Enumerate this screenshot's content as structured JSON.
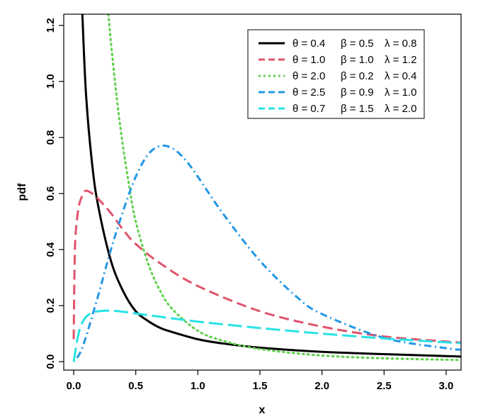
{
  "chart_data": {
    "type": "line",
    "title": "",
    "xlabel": "x",
    "ylabel": "pdf",
    "xlim": [
      -0.08,
      3.12
    ],
    "ylim": [
      -0.03,
      1.24
    ],
    "x_ticks": [
      "0.0",
      "0.5",
      "1.0",
      "1.5",
      "2.0",
      "2.5",
      "3.0"
    ],
    "y_ticks": [
      "0.0",
      "0.2",
      "0.4",
      "0.6",
      "0.8",
      "1.0",
      "1.2"
    ],
    "grid": false,
    "legend_position": "top-right",
    "series": [
      {
        "name": "θ = 0.4  β = 0.5  λ = 0.8",
        "color": "#000000",
        "dash": "solid",
        "x": [
          0.07,
          0.1,
          0.15,
          0.2,
          0.3,
          0.4,
          0.5,
          0.6,
          0.7,
          0.8,
          1.0,
          1.2,
          1.5,
          2.0,
          2.5,
          3.0,
          3.12
        ],
        "y": [
          1.24,
          0.95,
          0.7,
          0.55,
          0.36,
          0.25,
          0.18,
          0.145,
          0.12,
          0.105,
          0.08,
          0.065,
          0.05,
          0.035,
          0.027,
          0.02,
          0.018
        ]
      },
      {
        "name": "θ = 1.0  β = 1.0  λ = 1.2",
        "color": "#DF536B",
        "dash": "dashed",
        "x": [
          0.0,
          0.01,
          0.03,
          0.05,
          0.08,
          0.1,
          0.15,
          0.2,
          0.3,
          0.4,
          0.5,
          0.7,
          1.0,
          1.5,
          2.0,
          2.5,
          3.0,
          3.12
        ],
        "y": [
          0.08,
          0.4,
          0.52,
          0.57,
          0.6,
          0.61,
          0.6,
          0.58,
          0.53,
          0.47,
          0.42,
          0.35,
          0.27,
          0.18,
          0.125,
          0.09,
          0.072,
          0.068
        ]
      },
      {
        "name": "θ = 2.0  β = 0.2  λ = 0.4",
        "color": "#61D04F",
        "dash": "dotted",
        "x": [
          0.28,
          0.3,
          0.35,
          0.4,
          0.45,
          0.5,
          0.6,
          0.7,
          0.8,
          1.0,
          1.2,
          1.5,
          2.0,
          2.5,
          3.0,
          3.12
        ],
        "y": [
          1.24,
          1.14,
          0.93,
          0.76,
          0.62,
          0.5,
          0.35,
          0.25,
          0.185,
          0.11,
          0.075,
          0.045,
          0.022,
          0.012,
          0.007,
          0.006
        ]
      },
      {
        "name": "θ = 2.5  β = 0.9  λ = 1.0",
        "color": "#2297E6",
        "dash": "dotdash",
        "x": [
          0.0,
          0.05,
          0.1,
          0.2,
          0.3,
          0.4,
          0.5,
          0.6,
          0.7,
          0.8,
          0.9,
          1.0,
          1.2,
          1.5,
          1.8,
          2.0,
          2.5,
          3.0,
          3.12
        ],
        "y": [
          0.0,
          0.03,
          0.09,
          0.24,
          0.4,
          0.54,
          0.66,
          0.74,
          0.77,
          0.76,
          0.72,
          0.66,
          0.53,
          0.36,
          0.23,
          0.17,
          0.085,
          0.048,
          0.043
        ]
      },
      {
        "name": "θ = 0.7  β = 1.5  λ = 2.0",
        "color": "#28E2E5",
        "dash": "longdash",
        "x": [
          0.0,
          0.03,
          0.06,
          0.1,
          0.15,
          0.2,
          0.3,
          0.4,
          0.5,
          0.7,
          1.0,
          1.5,
          2.0,
          2.5,
          3.0,
          3.12
        ],
        "y": [
          0.0,
          0.08,
          0.13,
          0.16,
          0.175,
          0.18,
          0.182,
          0.178,
          0.172,
          0.16,
          0.143,
          0.12,
          0.1,
          0.083,
          0.069,
          0.066
        ]
      }
    ]
  },
  "legend": {
    "entries": [
      {
        "theta": "θ = 0.4",
        "beta": "β = 0.5",
        "lambda": "λ = 0.8"
      },
      {
        "theta": "θ = 1.0",
        "beta": "β = 1.0",
        "lambda": "λ = 1.2"
      },
      {
        "theta": "θ = 2.0",
        "beta": "β = 0.2",
        "lambda": "λ = 0.4"
      },
      {
        "theta": "θ = 2.5",
        "beta": "β = 0.9",
        "lambda": "λ = 1.0"
      },
      {
        "theta": "θ = 0.7",
        "beta": "β = 1.5",
        "lambda": "λ = 2.0"
      }
    ]
  }
}
